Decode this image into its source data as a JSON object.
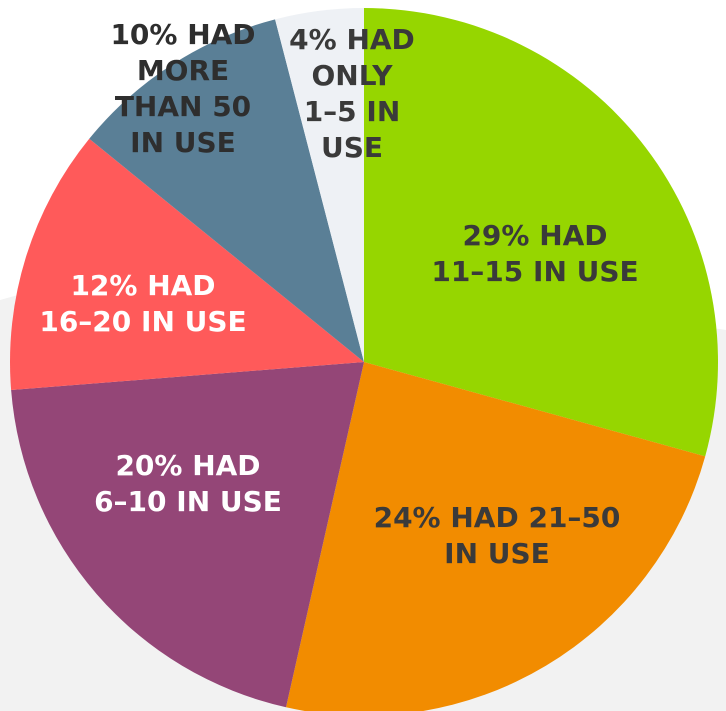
{
  "chart_data": {
    "type": "pie",
    "categories": [
      [
        "29% HAD",
        "11–15 IN USE"
      ],
      [
        "24% HAD 21–50",
        "IN USE"
      ],
      [
        "20% HAD",
        "6–10 IN USE"
      ],
      [
        "12% HAD",
        "16–20 IN USE"
      ],
      [
        "10% HAD",
        "MORE",
        "THAN 50",
        "IN USE"
      ],
      [
        "4% HAD",
        "ONLY",
        "1–5 IN",
        "USE"
      ]
    ],
    "values": [
      29,
      24,
      20,
      12,
      10,
      4
    ],
    "colors": [
      "#96d600",
      "#f28c00",
      "#944677",
      "#ff5a5a",
      "#5a7f96",
      "#eef1f5"
    ],
    "label_colors": [
      "#3a3a3a",
      "#3a3a3a",
      "#ffffff",
      "#ffffff",
      "#2e2e2e",
      "#3a3a3a"
    ]
  }
}
